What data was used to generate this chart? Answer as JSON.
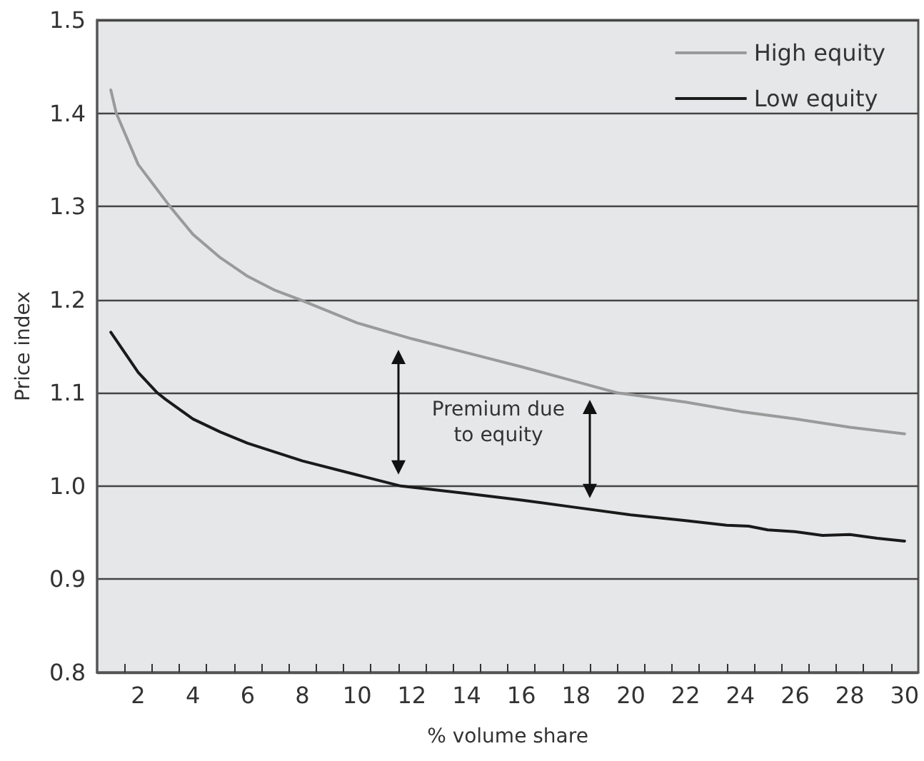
{
  "chart_data": {
    "type": "line",
    "xlabel": "% volume share",
    "ylabel": "Price index",
    "xlim": [
      0.5,
      30.5
    ],
    "xticks": [
      {
        "value": 1.5,
        "label": null
      },
      2,
      {
        "value": 2.5,
        "label": null
      },
      {
        "value": 3.5,
        "label": null
      },
      4,
      {
        "value": 4.5,
        "label": null
      },
      {
        "value": 5.5,
        "label": null
      },
      6,
      {
        "value": 6.5,
        "label": null
      },
      {
        "value": 7.5,
        "label": null
      },
      8,
      {
        "value": 8.5,
        "label": null
      },
      {
        "value": 9.5,
        "label": null
      },
      10,
      {
        "value": 10.5,
        "label": null
      },
      {
        "value": 11.5,
        "label": null
      },
      12,
      {
        "value": 12.5,
        "label": null
      },
      {
        "value": 13.5,
        "label": null
      },
      14,
      {
        "value": 14.5,
        "label": null
      },
      {
        "value": 15.5,
        "label": null
      },
      16,
      {
        "value": 16.5,
        "label": null
      },
      {
        "value": 17.5,
        "label": null
      },
      18,
      {
        "value": 18.5,
        "label": null
      },
      {
        "value": 19.5,
        "label": null
      },
      20,
      {
        "value": 20.5,
        "label": null
      },
      {
        "value": 21.5,
        "label": null
      },
      22,
      {
        "value": 22.5,
        "label": null
      },
      {
        "value": 23.5,
        "label": null
      },
      24,
      {
        "value": 24.5,
        "label": null
      },
      {
        "value": 25.5,
        "label": null
      },
      26,
      {
        "value": 26.5,
        "label": null
      },
      {
        "value": 27.5,
        "label": null
      },
      28,
      {
        "value": 28.5,
        "label": null
      },
      {
        "value": 29.5,
        "label": null
      },
      30
    ],
    "ylim": [
      0.8,
      1.5
    ],
    "yticks": [
      0.8,
      0.9,
      {
        "value": 1,
        "label": "1.0"
      },
      1.1,
      1.2,
      1.3,
      1.4,
      1.5
    ],
    "grid": "y",
    "legend": "top right",
    "marker": "none",
    "line_style": "solid",
    "annotations": [
      "Premium due\nto equity"
    ],
    "series": [
      {
        "name": "High equity",
        "color": "#9a9a9a",
        "x": [
          1,
          1.2,
          2,
          3.16,
          4,
          5,
          6,
          7,
          7.9,
          10,
          12,
          14,
          16,
          18,
          19.5,
          22,
          24,
          26,
          28,
          30
        ],
        "values": [
          1.425,
          1.4,
          1.345,
          1.3,
          1.27,
          1.245,
          1.225,
          1.21,
          1.2,
          1.175,
          1.158,
          1.143,
          1.128,
          1.112,
          1.1,
          1.09,
          1.08,
          1.072,
          1.063,
          1.056
        ]
      },
      {
        "name": "Low equity",
        "color": "#1a1a1a",
        "x": [
          1,
          2,
          2.7,
          3,
          4,
          5,
          6,
          8,
          10,
          11.6,
          14,
          16,
          18,
          20,
          22,
          23.5,
          24.3,
          25,
          26,
          27,
          28,
          29,
          30
        ],
        "values": [
          1.165,
          1.122,
          1.1,
          1.093,
          1.072,
          1.058,
          1.046,
          1.027,
          1.012,
          1,
          0.992,
          0.985,
          0.977,
          0.969,
          0.963,
          0.958,
          0.957,
          0.953,
          0.951,
          0.947,
          0.948,
          0.944,
          0.941
        ]
      }
    ]
  }
}
